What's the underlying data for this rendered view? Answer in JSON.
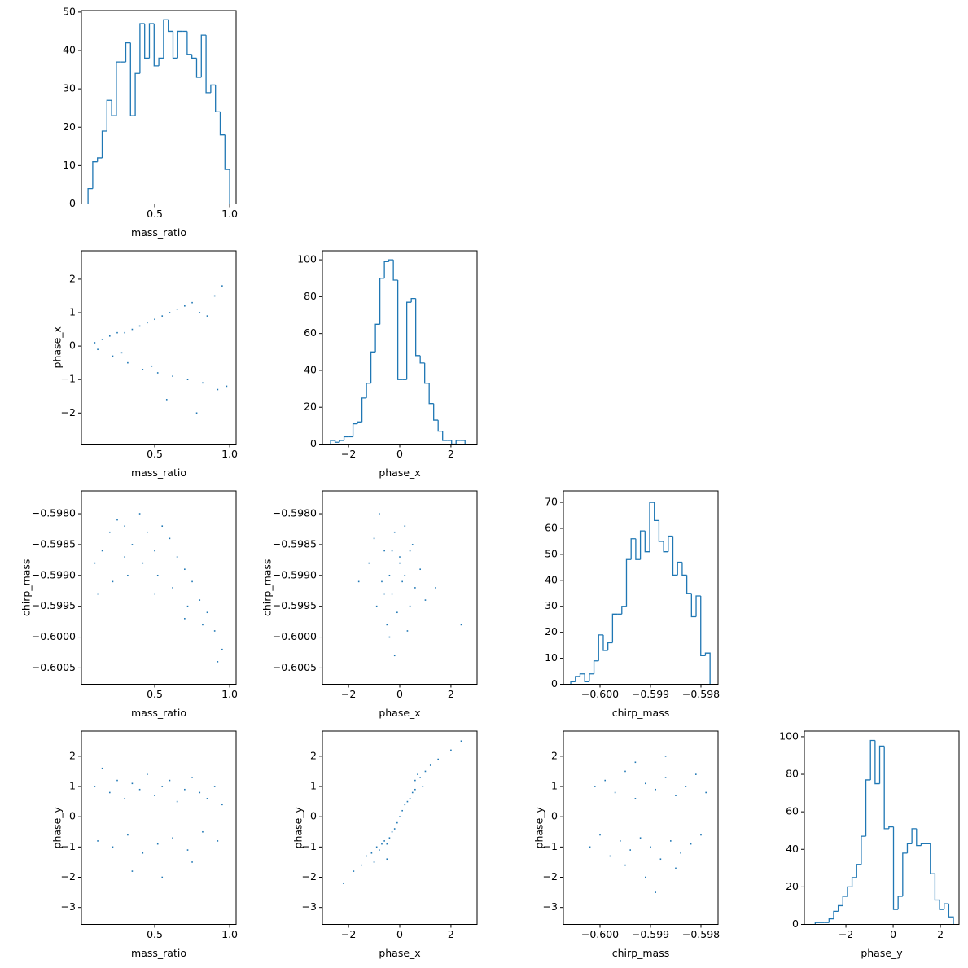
{
  "chart_data": [
    {
      "type": "histogram",
      "xlabel": "mass_ratio",
      "color": "#1f77b4",
      "bins": [
        0.055,
        0.0865,
        0.118,
        0.1495,
        0.181,
        0.2125,
        0.244,
        0.2755,
        0.307,
        0.3385,
        0.37,
        0.4015,
        0.433,
        0.4645,
        0.496,
        0.5275,
        0.559,
        0.5905,
        0.622,
        0.6535,
        0.685,
        0.7165,
        0.748,
        0.7795,
        0.811,
        0.8425,
        0.874,
        0.9055,
        0.937,
        0.9685,
        1.0
      ],
      "values": [
        4,
        11,
        12,
        19,
        27,
        23,
        37,
        37,
        42,
        23,
        34,
        47,
        38,
        47,
        36,
        38,
        48,
        45,
        38,
        45,
        45,
        39,
        38,
        33,
        44,
        29,
        31,
        24,
        18,
        9
      ],
      "xlim": [
        0.011,
        1.043
      ],
      "ylim": [
        0,
        50.4
      ],
      "xticks": [
        0.5,
        {
          "value": 1,
          "label": "1.0"
        }
      ],
      "yticks": [
        0,
        10,
        20,
        30,
        40,
        50
      ]
    },
    {
      "type": "scatter",
      "xlabel": "mass_ratio",
      "ylabel": "phase_x",
      "color": "#1f77b4",
      "x": [
        0.1,
        0.15,
        0.2,
        0.25,
        0.3,
        0.35,
        0.4,
        0.45,
        0.5,
        0.55,
        0.6,
        0.65,
        0.7,
        0.75,
        0.8,
        0.85,
        0.9,
        0.95,
        0.12,
        0.22,
        0.32,
        0.42,
        0.52,
        0.62,
        0.72,
        0.82,
        0.92,
        0.58,
        0.78,
        0.98,
        0.28,
        0.48
      ],
      "y": [
        0.1,
        0.2,
        0.3,
        0.4,
        0.4,
        0.5,
        0.6,
        0.7,
        0.8,
        0.9,
        1.0,
        1.1,
        1.2,
        1.3,
        1.0,
        0.9,
        1.5,
        1.8,
        -0.1,
        -0.3,
        -0.5,
        -0.7,
        -0.8,
        -0.9,
        -1.0,
        -1.1,
        -1.3,
        -1.6,
        -2.0,
        -1.2,
        -0.2,
        -0.6
      ],
      "xlim": [
        0.011,
        1.043
      ],
      "ylim": [
        -2.93,
        2.85
      ],
      "xticks": [
        0.5,
        {
          "value": 1,
          "label": "1.0"
        }
      ],
      "yticks": [
        {
          "value": -2,
          "label": "−2"
        },
        {
          "value": -1,
          "label": "−1"
        },
        0,
        1,
        2
      ]
    },
    {
      "type": "histogram",
      "xlabel": "phase_x",
      "color": "#1f77b4",
      "bins": [
        -2.7,
        -2.525,
        -2.35,
        -2.175,
        -2.0,
        -1.825,
        -1.65,
        -1.475,
        -1.3,
        -1.125,
        -0.95,
        -0.775,
        -0.6,
        -0.425,
        -0.25,
        -0.075,
        0.1,
        0.275,
        0.45,
        0.625,
        0.8,
        0.975,
        1.15,
        1.325,
        1.5,
        1.675,
        1.85,
        2.025,
        2.2,
        2.375,
        2.55
      ],
      "values": [
        2,
        1,
        2,
        4,
        4,
        11,
        12,
        25,
        33,
        50,
        65,
        90,
        99,
        100,
        89,
        35,
        35,
        77,
        79,
        48,
        44,
        33,
        22,
        13,
        7,
        2,
        2,
        0,
        2,
        2
      ],
      "xlim": [
        -3.02,
        3.02
      ],
      "ylim": [
        0,
        104.9
      ],
      "xticks": [
        {
          "value": -2,
          "label": "−2"
        },
        0,
        2
      ],
      "yticks": [
        0,
        20,
        40,
        60,
        80,
        100
      ]
    },
    {
      "type": "scatter",
      "xlabel": "mass_ratio",
      "ylabel": "chirp_mass",
      "color": "#1f77b4",
      "x": [
        0.1,
        0.15,
        0.2,
        0.25,
        0.3,
        0.35,
        0.4,
        0.45,
        0.5,
        0.55,
        0.6,
        0.65,
        0.7,
        0.75,
        0.8,
        0.85,
        0.9,
        0.95,
        0.12,
        0.22,
        0.32,
        0.42,
        0.52,
        0.62,
        0.72,
        0.82,
        0.92,
        0.3,
        0.5,
        0.7
      ],
      "y": [
        -0.5988,
        -0.5986,
        -0.5983,
        -0.5981,
        -0.5982,
        -0.5985,
        -0.598,
        -0.5983,
        -0.5986,
        -0.5982,
        -0.5984,
        -0.5987,
        -0.5989,
        -0.5991,
        -0.5994,
        -0.5996,
        -0.5999,
        -0.6002,
        -0.5993,
        -0.5991,
        -0.599,
        -0.5988,
        -0.599,
        -0.5992,
        -0.5995,
        -0.5998,
        -0.6004,
        -0.5987,
        -0.5993,
        -0.5997
      ],
      "xlim": [
        0.011,
        1.043
      ],
      "ylim": [
        -0.600765,
        -0.59763
      ],
      "xticks": [
        0.5,
        {
          "value": 1,
          "label": "1.0"
        }
      ],
      "yticks": [
        {
          "value": -0.598,
          "label": "−0.5980"
        },
        {
          "value": -0.5985,
          "label": "−0.5985"
        },
        {
          "value": -0.599,
          "label": "−0.5990"
        },
        {
          "value": -0.5995,
          "label": "−0.5995"
        },
        {
          "value": -0.6,
          "label": "−0.6000"
        },
        {
          "value": -0.6005,
          "label": "−0.6005"
        }
      ]
    },
    {
      "type": "scatter",
      "xlabel": "phase_x",
      "ylabel": "chirp_mass",
      "color": "#1f77b4",
      "x": [
        -1.2,
        -1.0,
        -0.8,
        -0.6,
        -0.4,
        -0.2,
        0,
        0.2,
        0.4,
        0.6,
        0.8,
        1.0,
        -0.9,
        -0.5,
        -0.3,
        -0.1,
        0.1,
        0.3,
        0.5,
        -0.7,
        -0.4,
        0,
        0.4,
        -0.6,
        -0.2,
        0.2,
        1.4,
        -1.6,
        2.4,
        -0.3
      ],
      "y": [
        -0.5988,
        -0.5984,
        -0.598,
        -0.5986,
        -0.599,
        -0.5983,
        -0.5988,
        -0.5982,
        -0.5986,
        -0.5992,
        -0.5989,
        -0.5994,
        -0.5995,
        -0.5998,
        -0.5993,
        -0.5996,
        -0.5991,
        -0.5999,
        -0.5985,
        -0.5991,
        -0.6,
        -0.5987,
        -0.5995,
        -0.5993,
        -0.6003,
        -0.599,
        -0.5992,
        -0.5991,
        -0.5998,
        -0.5986
      ],
      "xlim": [
        -3.02,
        3.02
      ],
      "ylim": [
        -0.600765,
        -0.59763
      ],
      "xticks": [
        {
          "value": -2,
          "label": "−2"
        },
        0,
        2
      ],
      "yticks": [
        {
          "value": -0.598,
          "label": "−0.5980"
        },
        {
          "value": -0.5985,
          "label": "−0.5985"
        },
        {
          "value": -0.599,
          "label": "−0.5990"
        },
        {
          "value": -0.5995,
          "label": "−0.5995"
        },
        {
          "value": -0.6,
          "label": "−0.6000"
        },
        {
          "value": -0.6005,
          "label": "−0.6005"
        }
      ]
    },
    {
      "type": "histogram",
      "xlabel": "chirp_mass",
      "color": "#1f77b4",
      "bins": [
        -0.60058,
        -0.600488,
        -0.600396,
        -0.600304,
        -0.600212,
        -0.60012,
        -0.600028,
        -0.599936,
        -0.599844,
        -0.599752,
        -0.59966,
        -0.599568,
        -0.599476,
        -0.599384,
        -0.599292,
        -0.5992,
        -0.599108,
        -0.599016,
        -0.598924,
        -0.598832,
        -0.59874,
        -0.598648,
        -0.598556,
        -0.598464,
        -0.598372,
        -0.59828,
        -0.598188,
        -0.598096,
        -0.598004,
        -0.597912,
        -0.59782
      ],
      "values": [
        1,
        3,
        4,
        1,
        4,
        9,
        19,
        13,
        16,
        27,
        27,
        30,
        48,
        56,
        48,
        59,
        51,
        70,
        63,
        55,
        51,
        57,
        42,
        47,
        42,
        35,
        26,
        34,
        11,
        12
      ],
      "xlim": [
        -0.600726,
        -0.597661
      ],
      "ylim": [
        0,
        74.4
      ],
      "xticks": [
        {
          "value": -0.6,
          "label": "−0.600"
        },
        {
          "value": -0.599,
          "label": "−0.599"
        },
        {
          "value": -0.598,
          "label": "−0.598"
        }
      ],
      "yticks": [
        0,
        10,
        20,
        30,
        40,
        50,
        60,
        70
      ]
    },
    {
      "type": "scatter",
      "xlabel": "mass_ratio",
      "ylabel": "phase_y",
      "color": "#1f77b4",
      "x": [
        0.1,
        0.15,
        0.2,
        0.25,
        0.3,
        0.35,
        0.4,
        0.45,
        0.5,
        0.55,
        0.6,
        0.65,
        0.7,
        0.75,
        0.8,
        0.85,
        0.9,
        0.95,
        0.12,
        0.22,
        0.32,
        0.42,
        0.52,
        0.62,
        0.72,
        0.82,
        0.92,
        0.35,
        0.55,
        0.75
      ],
      "y": [
        1.0,
        1.6,
        0.8,
        1.2,
        0.6,
        1.1,
        0.9,
        1.4,
        0.7,
        1.0,
        1.2,
        0.5,
        0.9,
        1.3,
        0.8,
        0.6,
        1.0,
        0.4,
        -0.8,
        -1.0,
        -0.6,
        -1.2,
        -0.9,
        -0.7,
        -1.1,
        -0.5,
        -0.8,
        -1.8,
        -2.0,
        -1.5
      ],
      "xlim": [
        0.011,
        1.043
      ],
      "ylim": [
        -3.56,
        2.83
      ],
      "xticks": [
        0.5,
        {
          "value": 1,
          "label": "1.0"
        }
      ],
      "yticks": [
        {
          "value": -3,
          "label": "−3"
        },
        {
          "value": -2,
          "label": "−2"
        },
        {
          "value": -1,
          "label": "−1"
        },
        0,
        1,
        2
      ]
    },
    {
      "type": "scatter",
      "xlabel": "phase_x",
      "ylabel": "phase_y",
      "color": "#1f77b4",
      "x": [
        -2.2,
        -1.8,
        -1.5,
        -1.3,
        -1.1,
        -0.9,
        -0.8,
        -0.7,
        -0.6,
        -0.5,
        -0.4,
        -0.3,
        -0.2,
        -0.1,
        0,
        0.1,
        0.2,
        0.3,
        0.4,
        0.5,
        0.6,
        0.7,
        0.8,
        1.0,
        1.2,
        1.5,
        2.0,
        2.4,
        -1.0,
        -0.5,
        0.6,
        0.9
      ],
      "y": [
        -2.2,
        -1.8,
        -1.6,
        -1.3,
        -1.2,
        -1.0,
        -1.1,
        -0.9,
        -0.8,
        -0.9,
        -0.7,
        -0.5,
        -0.4,
        -0.2,
        0,
        0.2,
        0.4,
        0.5,
        0.6,
        0.8,
        1.2,
        1.4,
        1.3,
        1.5,
        1.7,
        1.9,
        2.2,
        2.5,
        -1.5,
        -1.4,
        0.9,
        1.0
      ],
      "xlim": [
        -3.02,
        3.02
      ],
      "ylim": [
        -3.56,
        2.83
      ],
      "xticks": [
        {
          "value": -2,
          "label": "−2"
        },
        0,
        2
      ],
      "yticks": [
        {
          "value": -3,
          "label": "−3"
        },
        {
          "value": -2,
          "label": "−2"
        },
        {
          "value": -1,
          "label": "−1"
        },
        0,
        1,
        2
      ]
    },
    {
      "type": "scatter",
      "xlabel": "chirp_mass",
      "ylabel": "phase_y",
      "color": "#1f77b4",
      "x": [
        -0.6002,
        -0.6001,
        -0.6,
        -0.5999,
        -0.5998,
        -0.5997,
        -0.5996,
        -0.5995,
        -0.5994,
        -0.5993,
        -0.5992,
        -0.5991,
        -0.599,
        -0.5989,
        -0.5988,
        -0.5987,
        -0.5986,
        -0.5985,
        -0.5984,
        -0.5983,
        -0.5982,
        -0.5981,
        -0.598,
        -0.5979,
        -0.5991,
        -0.5989,
        -0.5987,
        -0.5993,
        -0.5985,
        -0.5995
      ],
      "y": [
        -1.0,
        1.0,
        -0.6,
        1.2,
        -1.3,
        0.8,
        -0.8,
        1.5,
        -1.1,
        0.6,
        -0.7,
        1.1,
        -1.0,
        0.9,
        -1.4,
        1.3,
        -0.8,
        0.7,
        -1.2,
        1.0,
        -0.9,
        1.4,
        -0.6,
        0.8,
        -2.0,
        -2.5,
        2.0,
        1.8,
        -1.7,
        -1.6
      ],
      "xlim": [
        -0.600726,
        -0.597661
      ],
      "ylim": [
        -3.56,
        2.83
      ],
      "xticks": [
        {
          "value": -0.6,
          "label": "−0.600"
        },
        {
          "value": -0.599,
          "label": "−0.599"
        },
        {
          "value": -0.598,
          "label": "−0.598"
        }
      ],
      "yticks": [
        {
          "value": -3,
          "label": "−3"
        },
        {
          "value": -2,
          "label": "−2"
        },
        {
          "value": -1,
          "label": "−1"
        },
        0,
        1,
        2
      ]
    },
    {
      "type": "histogram",
      "xlabel": "phase_y",
      "color": "#1f77b4",
      "bins": [
        -3.3,
        -3.105,
        -2.91,
        -2.715,
        -2.52,
        -2.325,
        -2.13,
        -1.935,
        -1.74,
        -1.545,
        -1.35,
        -1.155,
        -0.96,
        -0.765,
        -0.57,
        -0.375,
        -0.18,
        0.015,
        0.21,
        0.405,
        0.6,
        0.795,
        0.99,
        1.185,
        1.38,
        1.575,
        1.77,
        1.965,
        2.16,
        2.355,
        2.55
      ],
      "values": [
        1,
        1,
        1,
        3,
        7,
        10,
        15,
        20,
        25,
        32,
        47,
        77,
        98,
        75,
        95,
        51,
        52,
        8,
        15,
        38,
        43,
        51,
        42,
        43,
        43,
        27,
        13,
        8,
        11,
        4
      ],
      "xlim": [
        -3.76,
        2.79
      ],
      "ylim": [
        0,
        103
      ],
      "xticks": [
        {
          "value": -2,
          "label": "−2"
        },
        0,
        2
      ],
      "yticks": [
        0,
        20,
        40,
        60,
        80,
        100
      ]
    }
  ]
}
